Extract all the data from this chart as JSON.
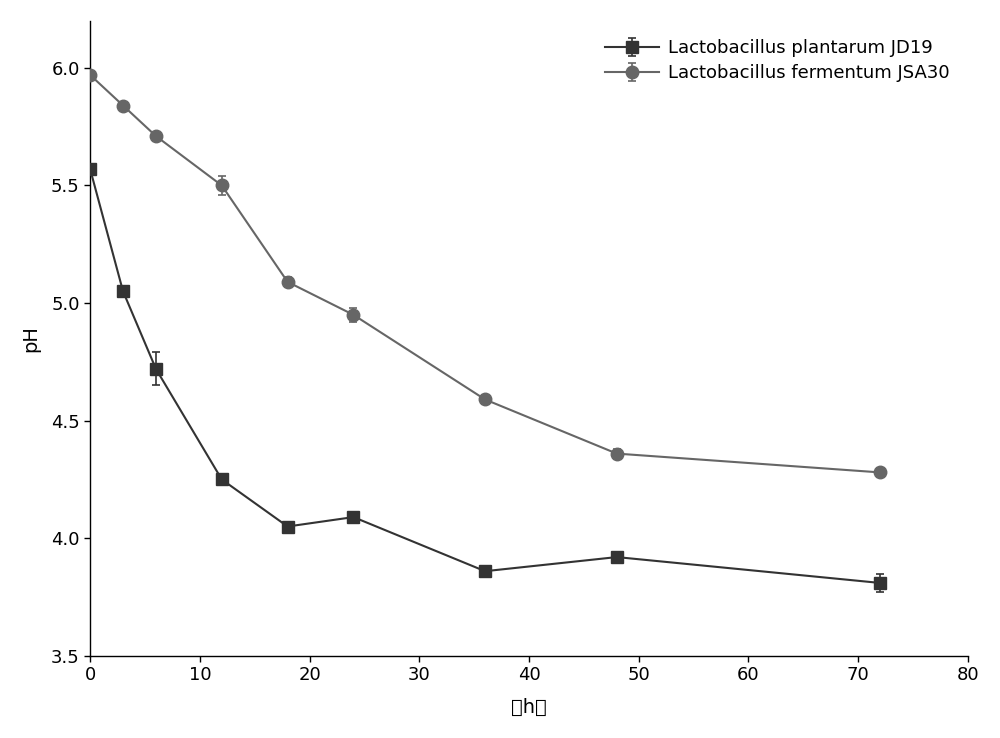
{
  "title": "",
  "xlabel": "（h）",
  "ylabel": "pH",
  "xlim": [
    0,
    80
  ],
  "ylim": [
    3.5,
    6.2
  ],
  "xticks": [
    0,
    10,
    20,
    30,
    40,
    50,
    60,
    70,
    80
  ],
  "yticks": [
    3.5,
    4.0,
    4.5,
    5.0,
    5.5,
    6.0
  ],
  "series": [
    {
      "label": "Lactobacillus plantarum JD19",
      "x": [
        0,
        3,
        6,
        12,
        18,
        24,
        36,
        48,
        72
      ],
      "y": [
        5.57,
        5.05,
        4.72,
        4.25,
        4.05,
        4.09,
        3.86,
        3.92,
        3.81
      ],
      "yerr": [
        0.0,
        0.0,
        0.07,
        0.0,
        0.0,
        0.0,
        0.0,
        0.0,
        0.04
      ],
      "color": "#333333",
      "marker": "s",
      "marker_size": 8,
      "line_style": "-"
    },
    {
      "label": "Lactobacillus fermentum JSA30",
      "x": [
        0,
        3,
        6,
        12,
        18,
        24,
        36,
        48,
        72
      ],
      "y": [
        5.97,
        5.84,
        5.71,
        5.5,
        5.09,
        4.95,
        4.59,
        4.36,
        4.28
      ],
      "yerr": [
        0.0,
        0.0,
        0.0,
        0.04,
        0.02,
        0.03,
        0.02,
        0.02,
        0.02
      ],
      "color": "#666666",
      "marker": "o",
      "marker_size": 9,
      "line_style": "-"
    }
  ],
  "legend_loc": "upper right",
  "legend_fontsize": 13,
  "axis_fontsize": 14,
  "tick_fontsize": 13,
  "xlabel_fontsize": 14,
  "background_color": "#ffffff",
  "figure_width": 10.0,
  "figure_height": 7.38
}
